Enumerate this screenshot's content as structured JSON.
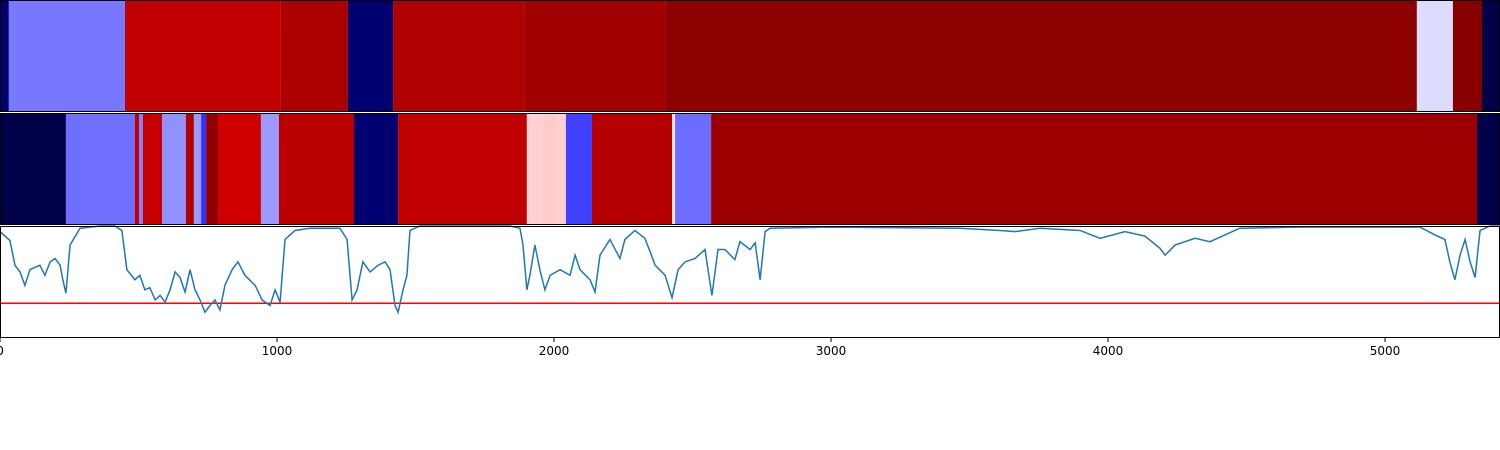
{
  "chart_data": [
    {
      "type": "segments",
      "xlim": [
        0,
        5415
      ],
      "segments": [
        {
          "start": 0,
          "end": 32,
          "color": "#000070"
        },
        {
          "start": 32,
          "end": 451,
          "color": "#7878ff"
        },
        {
          "start": 451,
          "end": 1014,
          "color": "#c00000"
        },
        {
          "start": 1014,
          "end": 1256,
          "color": "#aa0000"
        },
        {
          "start": 1256,
          "end": 1419,
          "color": "#000070"
        },
        {
          "start": 1419,
          "end": 1892,
          "color": "#b00000"
        },
        {
          "start": 1892,
          "end": 2404,
          "color": "#a00000"
        },
        {
          "start": 2404,
          "end": 5115,
          "color": "#8c0000"
        },
        {
          "start": 5115,
          "end": 5245,
          "color": "#dcdcff"
        },
        {
          "start": 5245,
          "end": 5350,
          "color": "#860000"
        },
        {
          "start": 5350,
          "end": 5415,
          "color": "#000048"
        }
      ]
    },
    {
      "type": "segments",
      "xlim": [
        0,
        5415
      ],
      "segments": [
        {
          "start": 0,
          "end": 238,
          "color": "#000048"
        },
        {
          "start": 238,
          "end": 487,
          "color": "#6e6eff"
        },
        {
          "start": 487,
          "end": 502,
          "color": "#c00000"
        },
        {
          "start": 502,
          "end": 516,
          "color": "#8080ff"
        },
        {
          "start": 516,
          "end": 585,
          "color": "#c40000"
        },
        {
          "start": 585,
          "end": 671,
          "color": "#9090ff"
        },
        {
          "start": 671,
          "end": 700,
          "color": "#b00000"
        },
        {
          "start": 700,
          "end": 726,
          "color": "#9a9aff"
        },
        {
          "start": 726,
          "end": 744,
          "color": "#3030ff"
        },
        {
          "start": 744,
          "end": 787,
          "color": "#900000"
        },
        {
          "start": 787,
          "end": 942,
          "color": "#d00000"
        },
        {
          "start": 942,
          "end": 1007,
          "color": "#9a9aff"
        },
        {
          "start": 1007,
          "end": 1278,
          "color": "#bb0000"
        },
        {
          "start": 1278,
          "end": 1437,
          "color": "#000070"
        },
        {
          "start": 1437,
          "end": 1902,
          "color": "#c00000"
        },
        {
          "start": 1902,
          "end": 1960,
          "color": "#ffd0d4"
        },
        {
          "start": 1960,
          "end": 2007,
          "color": "#ffcccc"
        },
        {
          "start": 2007,
          "end": 2043,
          "color": "#ffd0d0"
        },
        {
          "start": 2043,
          "end": 2137,
          "color": "#4040ff"
        },
        {
          "start": 2137,
          "end": 2426,
          "color": "#b40000"
        },
        {
          "start": 2426,
          "end": 2437,
          "color": "#ffdddd"
        },
        {
          "start": 2437,
          "end": 2567,
          "color": "#6c6cff"
        },
        {
          "start": 2567,
          "end": 5332,
          "color": "#9c0000"
        },
        {
          "start": 5332,
          "end": 5415,
          "color": "#000048"
        }
      ]
    },
    {
      "type": "line",
      "xlim": [
        0,
        5415
      ],
      "ylim": [
        0,
        1
      ],
      "color": "#1f77b4",
      "xticks": [
        0,
        1000,
        2000,
        3000,
        4000,
        5000
      ],
      "hline": {
        "value": 0.31,
        "color": "#ff0000"
      },
      "x": [
        0,
        36,
        54,
        72,
        90,
        108,
        144,
        162,
        181,
        199,
        217,
        227,
        238,
        253,
        289,
        361,
        415,
        440,
        458,
        487,
        505,
        523,
        541,
        560,
        578,
        596,
        614,
        632,
        650,
        668,
        686,
        704,
        722,
        740,
        758,
        776,
        794,
        812,
        838,
        859,
        884,
        921,
        946,
        975,
        993,
        1011,
        1029,
        1065,
        1119,
        1227,
        1253,
        1271,
        1289,
        1310,
        1336,
        1365,
        1390,
        1408,
        1426,
        1437,
        1455,
        1469,
        1480,
        1516,
        1841,
        1877,
        1888,
        1902,
        1913,
        1931,
        1949,
        1967,
        1986,
        2022,
        2058,
        2076,
        2094,
        2130,
        2148,
        2166,
        2202,
        2238,
        2256,
        2292,
        2328,
        2347,
        2365,
        2401,
        2426,
        2448,
        2473,
        2509,
        2545,
        2570,
        2592,
        2617,
        2653,
        2671,
        2708,
        2726,
        2744,
        2762,
        2780,
        2996,
        3466,
        3610,
        3664,
        3754,
        3899,
        3971,
        4061,
        4133,
        4188,
        4206,
        4242,
        4314,
        4368,
        4422,
        4476,
        4693,
        5126,
        5180,
        5216,
        5234,
        5252,
        5271,
        5289,
        5307,
        5325,
        5343,
        5379,
        5415
      ],
      "values": [
        0.95,
        0.87,
        0.65,
        0.59,
        0.47,
        0.61,
        0.65,
        0.56,
        0.68,
        0.71,
        0.65,
        0.52,
        0.4,
        0.83,
        0.98,
        1.0,
        1.0,
        0.96,
        0.61,
        0.52,
        0.56,
        0.43,
        0.45,
        0.34,
        0.38,
        0.32,
        0.43,
        0.59,
        0.54,
        0.41,
        0.61,
        0.43,
        0.34,
        0.23,
        0.29,
        0.34,
        0.25,
        0.47,
        0.61,
        0.68,
        0.56,
        0.47,
        0.34,
        0.29,
        0.43,
        0.32,
        0.88,
        0.96,
        0.98,
        0.98,
        0.88,
        0.34,
        0.43,
        0.68,
        0.59,
        0.65,
        0.68,
        0.61,
        0.29,
        0.23,
        0.43,
        0.56,
        0.96,
        1.0,
        1.0,
        0.98,
        0.83,
        0.43,
        0.56,
        0.83,
        0.61,
        0.43,
        0.56,
        0.61,
        0.56,
        0.74,
        0.61,
        0.52,
        0.41,
        0.74,
        0.88,
        0.71,
        0.88,
        0.96,
        0.89,
        0.77,
        0.65,
        0.56,
        0.36,
        0.61,
        0.68,
        0.71,
        0.79,
        0.38,
        0.79,
        0.79,
        0.7,
        0.86,
        0.79,
        0.85,
        0.52,
        0.95,
        0.98,
        0.99,
        0.98,
        0.96,
        0.95,
        0.98,
        0.96,
        0.89,
        0.95,
        0.91,
        0.8,
        0.74,
        0.83,
        0.89,
        0.86,
        0.92,
        0.98,
        0.99,
        0.99,
        0.92,
        0.88,
        0.68,
        0.52,
        0.74,
        0.88,
        0.68,
        0.54,
        0.96,
        1.0,
        1.0
      ]
    }
  ]
}
